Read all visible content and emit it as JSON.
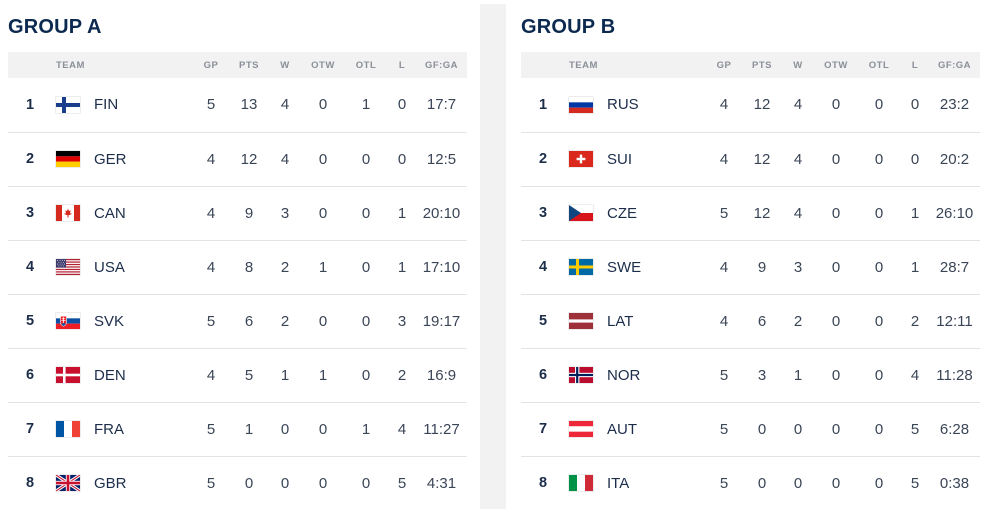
{
  "columns": [
    "TEAM",
    "GP",
    "PTS",
    "W",
    "OTW",
    "OTL",
    "L",
    "GF:GA"
  ],
  "groups": [
    {
      "title": "GROUP A",
      "rows": [
        {
          "rank": "1",
          "team": "FIN",
          "flag": "finland-flag-icon",
          "gp": "5",
          "pts": "13",
          "w": "4",
          "otw": "0",
          "otl": "1",
          "l": "0",
          "gfga": "17:7"
        },
        {
          "rank": "2",
          "team": "GER",
          "flag": "germany-flag-icon",
          "gp": "4",
          "pts": "12",
          "w": "4",
          "otw": "0",
          "otl": "0",
          "l": "0",
          "gfga": "12:5"
        },
        {
          "rank": "3",
          "team": "CAN",
          "flag": "canada-flag-icon",
          "gp": "4",
          "pts": "9",
          "w": "3",
          "otw": "0",
          "otl": "0",
          "l": "1",
          "gfga": "20:10"
        },
        {
          "rank": "4",
          "team": "USA",
          "flag": "usa-flag-icon",
          "gp": "4",
          "pts": "8",
          "w": "2",
          "otw": "1",
          "otl": "0",
          "l": "1",
          "gfga": "17:10"
        },
        {
          "rank": "5",
          "team": "SVK",
          "flag": "slovakia-flag-icon",
          "gp": "5",
          "pts": "6",
          "w": "2",
          "otw": "0",
          "otl": "0",
          "l": "3",
          "gfga": "19:17"
        },
        {
          "rank": "6",
          "team": "DEN",
          "flag": "denmark-flag-icon",
          "gp": "4",
          "pts": "5",
          "w": "1",
          "otw": "1",
          "otl": "0",
          "l": "2",
          "gfga": "16:9"
        },
        {
          "rank": "7",
          "team": "FRA",
          "flag": "france-flag-icon",
          "gp": "5",
          "pts": "1",
          "w": "0",
          "otw": "0",
          "otl": "1",
          "l": "4",
          "gfga": "11:27"
        },
        {
          "rank": "8",
          "team": "GBR",
          "flag": "uk-flag-icon",
          "gp": "5",
          "pts": "0",
          "w": "0",
          "otw": "0",
          "otl": "0",
          "l": "5",
          "gfga": "4:31"
        }
      ]
    },
    {
      "title": "GROUP B",
      "rows": [
        {
          "rank": "1",
          "team": "RUS",
          "flag": "russia-flag-icon",
          "gp": "4",
          "pts": "12",
          "w": "4",
          "otw": "0",
          "otl": "0",
          "l": "0",
          "gfga": "23:2"
        },
        {
          "rank": "2",
          "team": "SUI",
          "flag": "switzerland-flag-icon",
          "gp": "4",
          "pts": "12",
          "w": "4",
          "otw": "0",
          "otl": "0",
          "l": "0",
          "gfga": "20:2"
        },
        {
          "rank": "3",
          "team": "CZE",
          "flag": "czechia-flag-icon",
          "gp": "5",
          "pts": "12",
          "w": "4",
          "otw": "0",
          "otl": "0",
          "l": "1",
          "gfga": "26:10"
        },
        {
          "rank": "4",
          "team": "SWE",
          "flag": "sweden-flag-icon",
          "gp": "4",
          "pts": "9",
          "w": "3",
          "otw": "0",
          "otl": "0",
          "l": "1",
          "gfga": "28:7"
        },
        {
          "rank": "5",
          "team": "LAT",
          "flag": "latvia-flag-icon",
          "gp": "4",
          "pts": "6",
          "w": "2",
          "otw": "0",
          "otl": "0",
          "l": "2",
          "gfga": "12:11"
        },
        {
          "rank": "6",
          "team": "NOR",
          "flag": "norway-flag-icon",
          "gp": "5",
          "pts": "3",
          "w": "1",
          "otw": "0",
          "otl": "0",
          "l": "4",
          "gfga": "11:28"
        },
        {
          "rank": "7",
          "team": "AUT",
          "flag": "austria-flag-icon",
          "gp": "5",
          "pts": "0",
          "w": "0",
          "otw": "0",
          "otl": "0",
          "l": "5",
          "gfga": "6:28"
        },
        {
          "rank": "8",
          "team": "ITA",
          "flag": "italy-flag-icon",
          "gp": "5",
          "pts": "0",
          "w": "0",
          "otw": "0",
          "otl": "0",
          "l": "5",
          "gfga": "0:38"
        }
      ]
    }
  ]
}
